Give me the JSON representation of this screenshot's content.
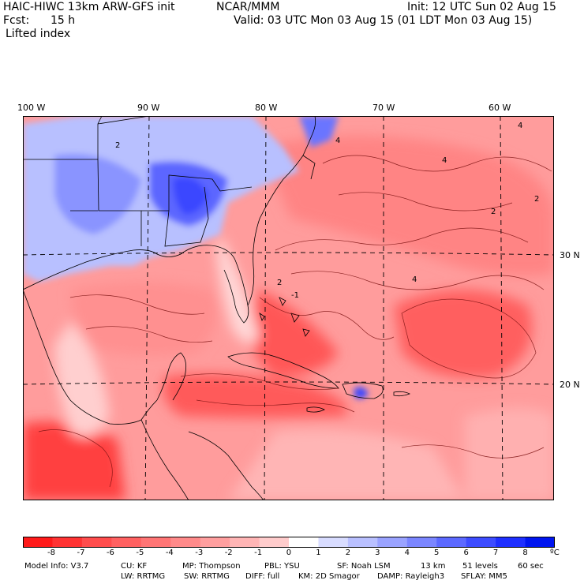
{
  "header": {
    "model": "HAIC-HIWC 13km ARW-GFS init",
    "org": "NCAR/MMM",
    "init": "Init: 12 UTC Sun 02 Aug 15",
    "fcst_label": "Fcst:",
    "fcst_value": "15 h",
    "valid": "Valid: 03 UTC Mon 03 Aug 15 (01 LDT Mon 03 Aug 15)",
    "field": "Lifted index"
  },
  "axes": {
    "lon_labels": [
      "100 W",
      "90 W",
      "80 W",
      "70 W",
      "60 W"
    ],
    "lat_labels": [
      "30 N",
      "20 N"
    ]
  },
  "colorbar": {
    "labels": [
      "-8",
      "-7",
      "-6",
      "-5",
      "-4",
      "-3",
      "-2",
      "-1",
      "0",
      "1",
      "2",
      "3",
      "4",
      "5",
      "6",
      "7",
      "8"
    ],
    "unit": "ºC",
    "colors": [
      "#ff1a1a",
      "#ff3333",
      "#ff4d4d",
      "#ff6161",
      "#ff7575",
      "#ff8a8a",
      "#ff9f9f",
      "#ffb5b5",
      "#ffcccc",
      "#ffffff",
      "#d8dcff",
      "#b9c0ff",
      "#9aa3ff",
      "#7b86ff",
      "#5c69ff",
      "#3d4cff",
      "#1e2fff",
      "#0015f0"
    ]
  },
  "footer": {
    "line1": [
      "Model Info: V3.7",
      "CU: KF",
      "MP: Thompson",
      "PBL: YSU",
      "SF: Noah LSM",
      "13 km",
      "51 levels",
      "60 sec"
    ],
    "line2": [
      "LW: RRTMG",
      "SW: RRTMG",
      "DIFF: full",
      "KM: 2D Smagor",
      "DAMP: Rayleigh3",
      "SFLAY: MM5"
    ]
  }
}
